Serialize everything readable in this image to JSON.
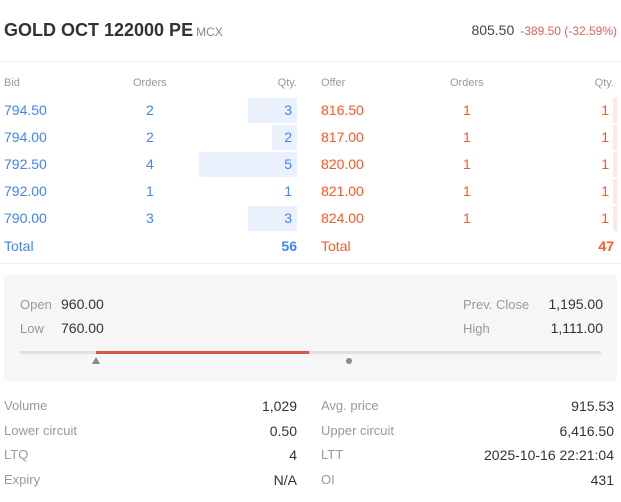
{
  "header": {
    "symbol": "GOLD OCT 122000 PE",
    "exchange": "MCX",
    "ltp": "805.50",
    "change": "-389.50 (-32.59%)"
  },
  "depth": {
    "headers": {
      "bid": "Bid",
      "orders": "Orders",
      "qty": "Qty.",
      "offer": "Offer"
    },
    "bids": [
      {
        "price": "794.50",
        "orders": "2",
        "qty": "3"
      },
      {
        "price": "794.00",
        "orders": "2",
        "qty": "2"
      },
      {
        "price": "792.50",
        "orders": "4",
        "qty": "5"
      },
      {
        "price": "792.00",
        "orders": "1",
        "qty": "1"
      },
      {
        "price": "790.00",
        "orders": "3",
        "qty": "3"
      }
    ],
    "offers": [
      {
        "price": "816.50",
        "orders": "1",
        "qty": "1"
      },
      {
        "price": "817.00",
        "orders": "1",
        "qty": "1"
      },
      {
        "price": "820.00",
        "orders": "1",
        "qty": "1"
      },
      {
        "price": "821.00",
        "orders": "1",
        "qty": "1"
      },
      {
        "price": "824.00",
        "orders": "1",
        "qty": "1"
      }
    ],
    "total_label": "Total",
    "bid_total": "56",
    "offer_total": "47"
  },
  "ohlc": {
    "open_label": "Open",
    "open": "960.00",
    "low_label": "Low",
    "low": "760.00",
    "prev_close_label": "Prev. Close",
    "prev_close": "1,195.00",
    "high_label": "High",
    "high": "1,111.00"
  },
  "stats": {
    "left": [
      {
        "label": "Volume",
        "value": "1,029"
      },
      {
        "label": "Lower circuit",
        "value": "0.50"
      },
      {
        "label": "LTQ",
        "value": "4"
      },
      {
        "label": "Expiry",
        "value": "N/A"
      }
    ],
    "right": [
      {
        "label": "Avg. price",
        "value": "915.53"
      },
      {
        "label": "Upper circuit",
        "value": "6,416.50"
      },
      {
        "label": "LTT",
        "value": "2025-10-16 22:21:04"
      },
      {
        "label": "OI",
        "value": "431"
      }
    ]
  },
  "colors": {
    "bid": "#4184f3",
    "offer": "#ff5722",
    "negative": "#e25f5b",
    "range_fill": "#d9534f"
  }
}
